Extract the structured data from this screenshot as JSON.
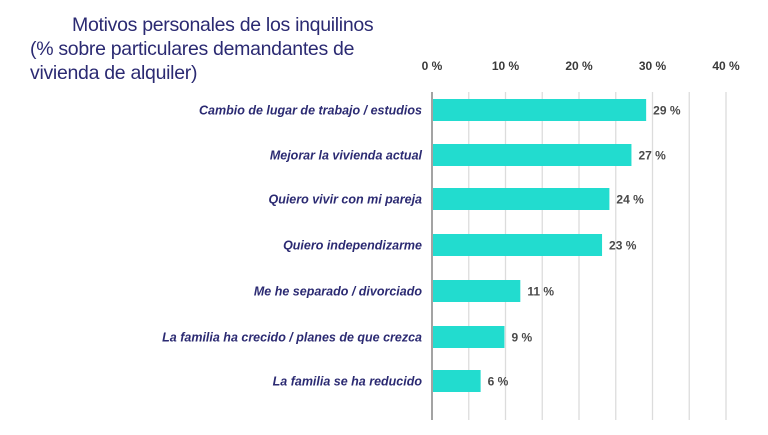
{
  "chart_data": {
    "type": "bar",
    "orientation": "horizontal",
    "title_lines": [
      "Motivos personales de los inquilinos",
      "(% sobre particulares demandantes de",
      "vivienda de alquiler)"
    ],
    "categories": [
      "Cambio de lugar de trabajo / estudios",
      "Mejorar la vivienda actual",
      "Quiero vivir con mi pareja",
      "Quiero independizarme",
      "Me he separado / divorciado",
      "La familia ha crecido / planes de que crezca",
      "La familia se ha reducido"
    ],
    "values": [
      29,
      27,
      24,
      23,
      11,
      9,
      6
    ],
    "value_labels": [
      "29 %",
      "27 %",
      "24 %",
      "23 %",
      "11 %",
      "9 %",
      "6 %"
    ],
    "xticks": [
      0,
      10,
      20,
      30,
      40
    ],
    "xtick_labels": [
      "0 %",
      "10 %",
      "20 %",
      "30 %",
      "40 %"
    ],
    "xlim": [
      0,
      40
    ],
    "grid": true,
    "xlabel": "",
    "ylabel": "",
    "bar_color": "#22dccf",
    "title_color": "#2b2a72"
  }
}
